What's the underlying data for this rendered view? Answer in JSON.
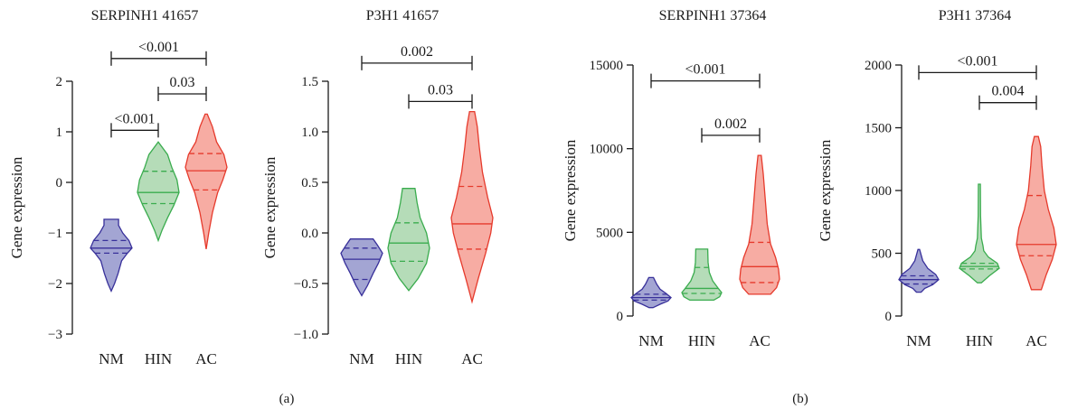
{
  "ylabel": "Gene expression",
  "panel_labels": [
    "(a)",
    "(b)"
  ],
  "colors": {
    "NM": {
      "stroke": "#38309a",
      "fill": "#a3a5d3"
    },
    "HIN": {
      "stroke": "#3aac4e",
      "fill": "#b5dcb8"
    },
    "AC": {
      "stroke": "#e63a2c",
      "fill": "#f7aca3"
    }
  },
  "chart_data": [
    {
      "type": "violin",
      "title": "SERPINH1 41657",
      "categories": [
        "NM",
        "HIN",
        "AC"
      ],
      "ylim": [
        -3,
        2
      ],
      "yticks": [
        "2",
        "1",
        "0",
        "−1",
        "−2",
        "−3"
      ],
      "ytick_values": [
        2,
        1,
        0,
        -1,
        -2,
        -3
      ],
      "violins": [
        {
          "group": "NM",
          "profile": [
            [
              -2.15,
              0
            ],
            [
              -2.0,
              0.16
            ],
            [
              -1.8,
              0.33
            ],
            [
              -1.55,
              0.5
            ],
            [
              -1.4,
              0.78
            ],
            [
              -1.3,
              1.0
            ],
            [
              -1.15,
              0.85
            ],
            [
              -1.0,
              0.55
            ],
            [
              -0.85,
              0.35
            ],
            [
              -0.73,
              0.35
            ]
          ],
          "median": -1.3,
          "q1": -1.4,
          "q3": -1.15
        },
        {
          "group": "HIN",
          "profile": [
            [
              -1.15,
              0
            ],
            [
              -0.95,
              0.18
            ],
            [
              -0.7,
              0.45
            ],
            [
              -0.45,
              0.75
            ],
            [
              -0.2,
              1.0
            ],
            [
              0.05,
              0.9
            ],
            [
              0.3,
              0.65
            ],
            [
              0.55,
              0.45
            ],
            [
              0.8,
              0
            ]
          ],
          "median": -0.2,
          "q1": -0.42,
          "q3": 0.22
        },
        {
          "group": "AC",
          "profile": [
            [
              -1.32,
              0
            ],
            [
              -1.0,
              0.12
            ],
            [
              -0.6,
              0.3
            ],
            [
              -0.2,
              0.55
            ],
            [
              0.05,
              0.8
            ],
            [
              0.3,
              1.0
            ],
            [
              0.55,
              0.85
            ],
            [
              0.8,
              0.5
            ],
            [
              1.1,
              0.3
            ],
            [
              1.35,
              0.05
            ]
          ],
          "median": 0.23,
          "q1": -0.15,
          "q3": 0.57
        }
      ],
      "comparisons": [
        {
          "from": 0,
          "to": 2,
          "label": "<0.001",
          "y": 2.45
        },
        {
          "from": 1,
          "to": 2,
          "label": "0.03",
          "y": 1.75
        },
        {
          "from": 0,
          "to": 1,
          "label": "<0.001",
          "y": 1.03
        }
      ]
    },
    {
      "type": "violin",
      "title": "P3H1 41657",
      "categories": [
        "NM",
        "HIN",
        "AC"
      ],
      "ylim": [
        -1.0,
        1.5
      ],
      "yticks": [
        "1.5",
        "1.0",
        "0.5",
        "0.0",
        "−0.5",
        "−1.0"
      ],
      "ytick_values": [
        1.5,
        1.0,
        0.5,
        0.0,
        -0.5,
        -1.0
      ],
      "violins": [
        {
          "group": "NM",
          "profile": [
            [
              -0.62,
              0
            ],
            [
              -0.52,
              0.28
            ],
            [
              -0.4,
              0.55
            ],
            [
              -0.3,
              0.8
            ],
            [
              -0.2,
              1.0
            ],
            [
              -0.12,
              0.75
            ],
            [
              -0.06,
              0.55
            ]
          ],
          "median": -0.26,
          "q1": -0.46,
          "q3": -0.15
        },
        {
          "group": "HIN",
          "profile": [
            [
              -0.57,
              0
            ],
            [
              -0.45,
              0.45
            ],
            [
              -0.3,
              0.85
            ],
            [
              -0.15,
              1.0
            ],
            [
              0.0,
              0.85
            ],
            [
              0.15,
              0.55
            ],
            [
              0.3,
              0.4
            ],
            [
              0.44,
              0.3
            ]
          ],
          "median": -0.1,
          "q1": -0.28,
          "q3": 0.1
        },
        {
          "group": "AC",
          "profile": [
            [
              -0.68,
              0
            ],
            [
              -0.45,
              0.3
            ],
            [
              -0.2,
              0.65
            ],
            [
              0.0,
              0.9
            ],
            [
              0.15,
              1.0
            ],
            [
              0.35,
              0.75
            ],
            [
              0.6,
              0.5
            ],
            [
              0.85,
              0.35
            ],
            [
              1.05,
              0.25
            ],
            [
              1.2,
              0.12
            ]
          ],
          "median": 0.09,
          "q1": -0.16,
          "q3": 0.46
        }
      ],
      "comparisons": [
        {
          "from": 0,
          "to": 2,
          "label": "0.002",
          "y": 1.68
        },
        {
          "from": 1,
          "to": 2,
          "label": "0.03",
          "y": 1.3
        }
      ]
    },
    {
      "type": "violin",
      "title": "SERPINH1 37364",
      "categories": [
        "NM",
        "HIN",
        "AC"
      ],
      "ylim": [
        0,
        15000
      ],
      "yticks": [
        "15000",
        "10000",
        "5000",
        "0"
      ],
      "ytick_values": [
        15000,
        10000,
        5000,
        0
      ],
      "violins": [
        {
          "group": "NM",
          "profile": [
            [
              500,
              0.1
            ],
            [
              700,
              0.45
            ],
            [
              900,
              0.85
            ],
            [
              1100,
              1.0
            ],
            [
              1350,
              0.75
            ],
            [
              1600,
              0.45
            ],
            [
              1900,
              0.28
            ],
            [
              2300,
              0.12
            ]
          ],
          "median": 1100,
          "q1": 950,
          "q3": 1300
        },
        {
          "group": "HIN",
          "profile": [
            [
              950,
              0.6
            ],
            [
              1150,
              0.9
            ],
            [
              1400,
              1.0
            ],
            [
              1700,
              0.8
            ],
            [
              2100,
              0.55
            ],
            [
              2600,
              0.38
            ],
            [
              3200,
              0.32
            ],
            [
              4000,
              0.3
            ]
          ],
          "median": 1650,
          "q1": 1350,
          "q3": 2900
        },
        {
          "group": "AC",
          "profile": [
            [
              1300,
              0.55
            ],
            [
              1700,
              0.85
            ],
            [
              2200,
              1.0
            ],
            [
              2800,
              0.95
            ],
            [
              3500,
              0.8
            ],
            [
              4300,
              0.55
            ],
            [
              5500,
              0.38
            ],
            [
              7000,
              0.28
            ],
            [
              8500,
              0.18
            ],
            [
              9600,
              0.08
            ]
          ],
          "median": 2950,
          "q1": 2000,
          "q3": 4400
        }
      ],
      "comparisons": [
        {
          "from": 0,
          "to": 2,
          "label": "<0.001",
          "y": 14050
        },
        {
          "from": 1,
          "to": 2,
          "label": "0.002",
          "y": 10800
        }
      ]
    },
    {
      "type": "violin",
      "title": "P3H1 37364",
      "categories": [
        "NM",
        "HIN",
        "AC"
      ],
      "ylim": [
        0,
        2000
      ],
      "yticks": [
        "2000",
        "1500",
        "1000",
        "500",
        "0"
      ],
      "ytick_values": [
        2000,
        1500,
        1000,
        500,
        0
      ],
      "violins": [
        {
          "group": "NM",
          "profile": [
            [
              190,
              0.12
            ],
            [
              220,
              0.3
            ],
            [
              250,
              0.7
            ],
            [
              290,
              1.0
            ],
            [
              330,
              0.85
            ],
            [
              380,
              0.45
            ],
            [
              440,
              0.2
            ],
            [
              530,
              0.04
            ]
          ],
          "median": 290,
          "q1": 255,
          "q3": 320
        },
        {
          "group": "HIN",
          "profile": [
            [
              265,
              0.1
            ],
            [
              320,
              0.5
            ],
            [
              380,
              1.0
            ],
            [
              420,
              0.9
            ],
            [
              470,
              0.45
            ],
            [
              520,
              0.22
            ],
            [
              560,
              0.18
            ],
            [
              620,
              0.1
            ],
            [
              800,
              0.06
            ],
            [
              1050,
              0.05
            ]
          ],
          "median": 395,
          "q1": 375,
          "q3": 420
        },
        {
          "group": "AC",
          "profile": [
            [
              210,
              0.25
            ],
            [
              330,
              0.5
            ],
            [
              450,
              0.8
            ],
            [
              570,
              1.0
            ],
            [
              700,
              0.88
            ],
            [
              850,
              0.6
            ],
            [
              1000,
              0.4
            ],
            [
              1200,
              0.28
            ],
            [
              1350,
              0.22
            ],
            [
              1430,
              0.1
            ]
          ],
          "median": 570,
          "q1": 480,
          "q3": 960
        }
      ],
      "comparisons": [
        {
          "from": 0,
          "to": 2,
          "label": "<0.001",
          "y": 1940
        },
        {
          "from": 1,
          "to": 2,
          "label": "0.004",
          "y": 1700
        }
      ]
    }
  ]
}
